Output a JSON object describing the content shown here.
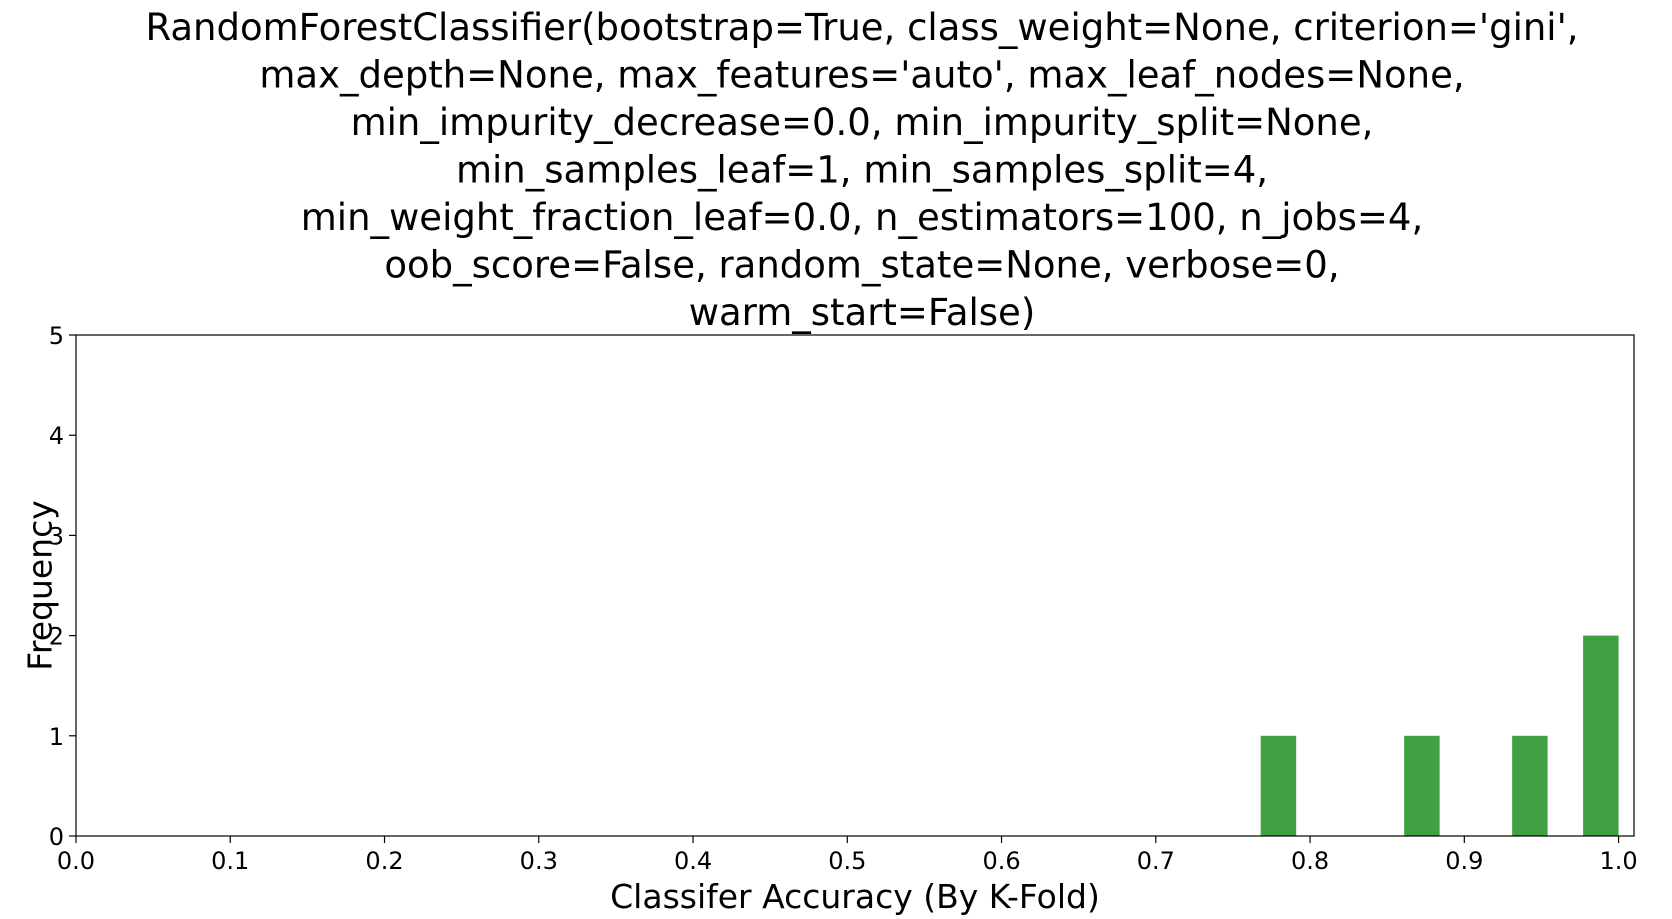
{
  "chart_data": {
    "type": "bar",
    "title_lines": [
      "RandomForestClassifier(bootstrap=True, class_weight=None, criterion='gini',",
      "max_depth=None, max_features='auto', max_leaf_nodes=None,",
      "min_impurity_decrease=0.0, min_impurity_split=None,",
      "min_samples_leaf=1, min_samples_split=4,",
      "min_weight_fraction_leaf=0.0, n_estimators=100, n_jobs=4,",
      "oob_score=False, random_state=None, verbose=0,",
      "warm_start=False)"
    ],
    "xlabel": "Classifer Accuracy (By K-Fold)",
    "ylabel": "Frequency",
    "xlim": [
      0.0,
      1.01
    ],
    "ylim": [
      0,
      5
    ],
    "x_ticks": [
      "0.0",
      "0.1",
      "0.2",
      "0.3",
      "0.4",
      "0.5",
      "0.6",
      "0.7",
      "0.8",
      "0.9",
      "1.0"
    ],
    "y_ticks": [
      "0",
      "1",
      "2",
      "3",
      "4",
      "5"
    ],
    "bars": [
      {
        "x_start": 0.768,
        "x_end": 0.791,
        "value": 1
      },
      {
        "x_start": 0.861,
        "x_end": 0.884,
        "value": 1
      },
      {
        "x_start": 0.931,
        "x_end": 0.954,
        "value": 1
      },
      {
        "x_start": 0.977,
        "x_end": 1.0,
        "value": 2
      }
    ],
    "bar_color": "#3fa142",
    "grid": false
  }
}
